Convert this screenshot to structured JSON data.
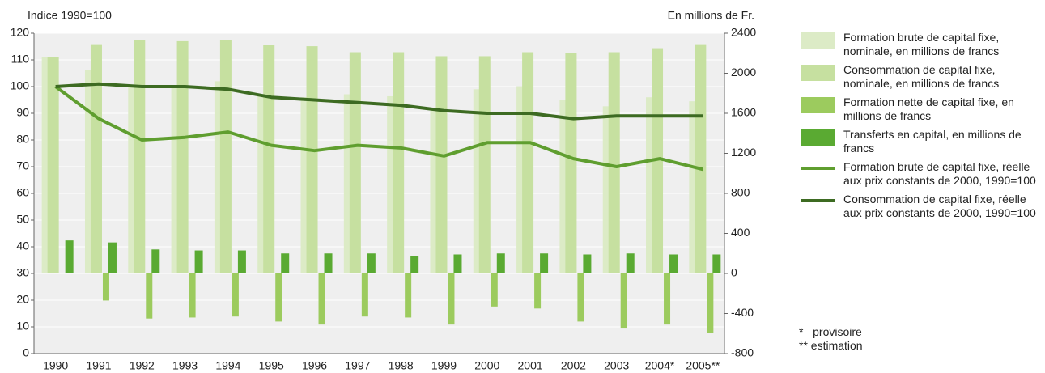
{
  "chart_data": {
    "type": "bar",
    "y_label": "Indice 1990=100",
    "y2_label": "En millions de Fr.",
    "categories": [
      "1990",
      "1991",
      "1992",
      "1993",
      "1994",
      "1995",
      "1996",
      "1997",
      "1998",
      "1999",
      "2000",
      "2001",
      "2002",
      "2003",
      "2004*",
      "2005**"
    ],
    "ylim": [
      0,
      120
    ],
    "yticks": [
      0,
      10,
      20,
      30,
      40,
      50,
      60,
      70,
      80,
      90,
      100,
      110,
      120
    ],
    "y2lim": [
      -800,
      2400
    ],
    "y2ticks": [
      -800,
      -400,
      0,
      400,
      800,
      1200,
      1600,
      2000,
      2400
    ],
    "grid": true,
    "series": [
      {
        "name": "Formation brute de capital fixe, nominale, en millions de francs",
        "type": "bar",
        "axis": "y2",
        "color": "#dcebc6",
        "values": [
          2160,
          2030,
          1870,
          1870,
          1920,
          1790,
          1760,
          1790,
          1770,
          1650,
          1840,
          1870,
          1730,
          1670,
          1760,
          1720
        ]
      },
      {
        "name": "Consommation de capital fixe, nominale, en millions de francs",
        "type": "bar",
        "axis": "y2",
        "color": "#c6e0a0",
        "values": [
          2160,
          2290,
          2330,
          2320,
          2330,
          2280,
          2270,
          2210,
          2210,
          2170,
          2170,
          2210,
          2200,
          2210,
          2250,
          2290
        ]
      },
      {
        "name": "Formation nette de capital fixe, en millions de francs",
        "type": "bar",
        "axis": "y2",
        "color": "#9ccb5e",
        "values": [
          0,
          -270,
          -450,
          -440,
          -430,
          -480,
          -510,
          -430,
          -440,
          -510,
          -330,
          -350,
          -480,
          -550,
          -510,
          -590
        ]
      },
      {
        "name": "Transferts en capital, en millions de francs",
        "type": "bar",
        "axis": "y2",
        "color": "#5aaa32",
        "values": [
          330,
          310,
          240,
          230,
          230,
          200,
          200,
          200,
          170,
          190,
          200,
          200,
          190,
          200,
          190,
          190
        ]
      },
      {
        "name": "Formation brute de capital fixe, réelle aux prix constants de 2000, 1990=100",
        "type": "line",
        "color": "#5f9e2f",
        "values": [
          100,
          88,
          80,
          81,
          83,
          78,
          76,
          78,
          77,
          74,
          79,
          79,
          73,
          70,
          73,
          69
        ]
      },
      {
        "name": "Consommation de capital fixe, réelle aux prix constants de 2000, 1990=100",
        "type": "line",
        "color": "#3d6b22",
        "values": [
          100,
          101,
          100,
          100,
          99,
          96,
          95,
          94,
          93,
          91,
          90,
          90,
          88,
          89,
          89,
          89
        ]
      }
    ],
    "notes": [
      "*   provisoire",
      "** estimation"
    ]
  }
}
